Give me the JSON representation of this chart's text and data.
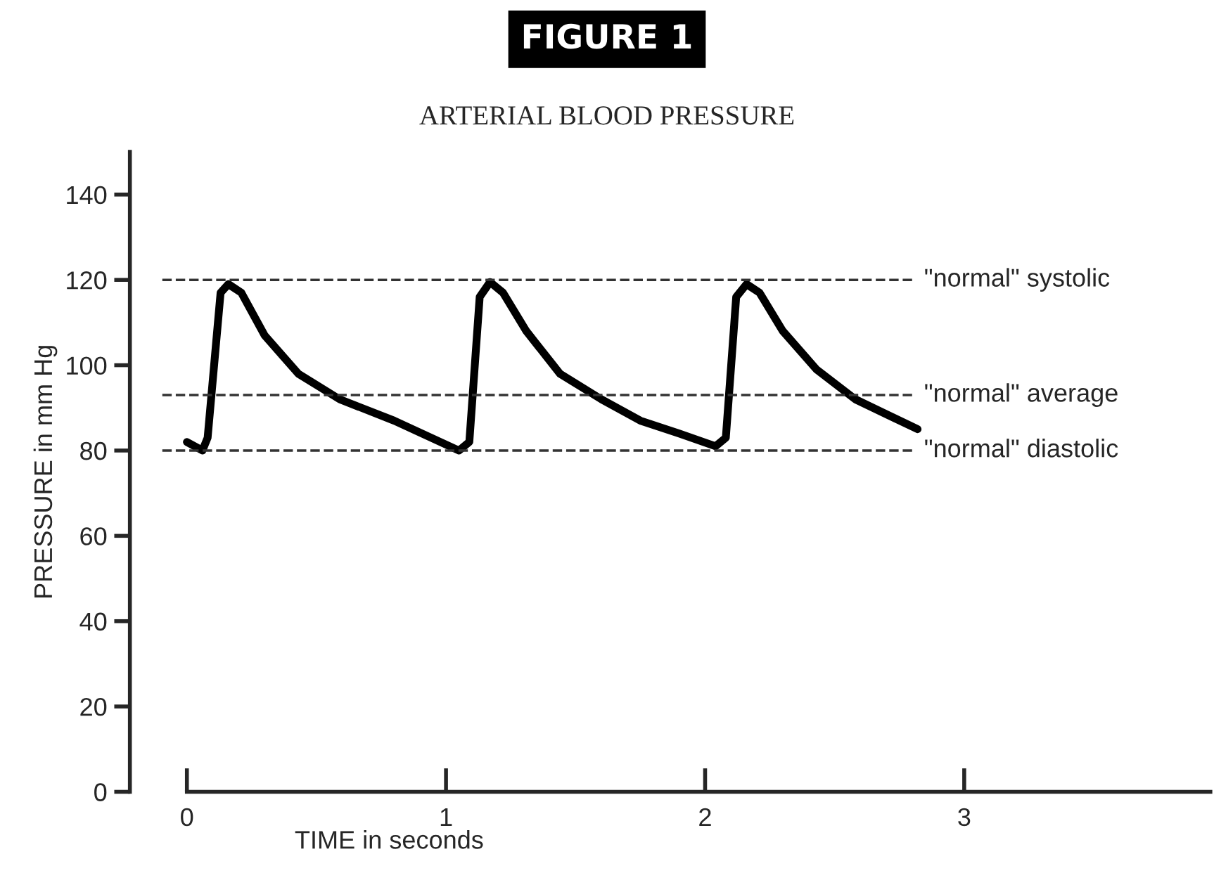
{
  "chart_data": {
    "type": "line",
    "title": "FIGURE 1",
    "subtitle": "ARTERIAL BLOOD PRESSURE",
    "xlabel": "TIME in seconds",
    "ylabel": "PRESSURE in mm Hg",
    "series": [
      {
        "color": "#000000",
        "line_style": "solid",
        "x": [
          0.0,
          0.06,
          0.08,
          0.13,
          0.16,
          0.21,
          0.3,
          0.43,
          0.59,
          0.8,
          1.05,
          1.09,
          1.13,
          1.17,
          1.22,
          1.31,
          1.44,
          1.6,
          1.75,
          1.9,
          2.04,
          2.08,
          2.12,
          2.16,
          2.21,
          2.3,
          2.43,
          2.58,
          2.82
        ],
        "values": [
          82,
          80,
          83,
          117,
          119,
          117,
          107,
          98,
          92,
          87,
          80,
          82,
          116,
          119.5,
          117,
          108,
          98,
          92,
          87,
          84,
          81,
          83,
          116,
          119,
          117,
          108,
          99,
          92,
          85
        ]
      }
    ],
    "xlim": [
      -0.22,
      3.95
    ],
    "xticks": [
      0,
      1,
      2,
      3
    ],
    "ylim": [
      0,
      150
    ],
    "yticks": [
      0,
      20,
      40,
      60,
      80,
      100,
      120,
      140
    ],
    "grid": false,
    "ref_lines": [
      {
        "axis": "y",
        "value": 120,
        "label": "\"normal\" systolic",
        "line_style": "dashed",
        "color": "#333333"
      },
      {
        "axis": "y",
        "value": 93,
        "label": "\"normal\" average",
        "line_style": "dashed",
        "color": "#333333"
      },
      {
        "axis": "y",
        "value": 80,
        "label": "\"normal\" diastolic",
        "line_style": "dashed",
        "color": "#333333"
      }
    ]
  }
}
